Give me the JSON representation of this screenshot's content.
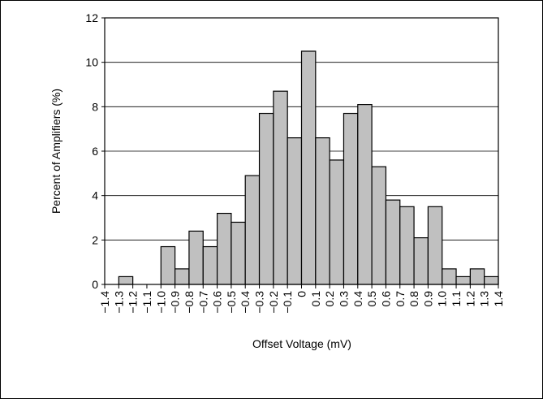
{
  "chart_data": {
    "type": "histogram",
    "x_label": "Offset Voltage (mV)",
    "y_label": "Percent of Amplifiers (%)",
    "bins": [
      -1.4,
      -1.3,
      -1.2,
      -1.1,
      -1.0,
      -0.9,
      -0.8,
      -0.7,
      -0.6,
      -0.5,
      -0.4,
      -0.3,
      -0.2,
      -0.1,
      0,
      0.1,
      0.2,
      0.3,
      0.4,
      0.5,
      0.6,
      0.7,
      0.8,
      0.9,
      1.0,
      1.1,
      1.2,
      1.3,
      1.4
    ],
    "counts": [
      0,
      0.35,
      0,
      0,
      1.7,
      0.7,
      2.4,
      1.7,
      3.2,
      2.8,
      4.9,
      7.7,
      8.7,
      6.6,
      10.5,
      6.6,
      5.6,
      7.7,
      8.1,
      5.3,
      3.8,
      3.5,
      2.1,
      3.5,
      0.7,
      0.35,
      0.7,
      0.35
    ],
    "color": "#c0c0c0",
    "xlim": [
      -1.4,
      1.4
    ],
    "ylim": [
      0,
      12
    ],
    "yticks": [
      0,
      2,
      4,
      6,
      8,
      10,
      12
    ],
    "xticks": [
      {
        "value": -1.4,
        "label": "−1.4"
      },
      {
        "value": -1.3,
        "label": "−1.3"
      },
      {
        "value": -1.2,
        "label": "−1.2"
      },
      {
        "value": -1.1,
        "label": "−1.1"
      },
      {
        "value": -1.0,
        "label": "−1.0"
      },
      {
        "value": -0.9,
        "label": "−0.9"
      },
      {
        "value": -0.8,
        "label": "−0.8"
      },
      {
        "value": -0.7,
        "label": "−0.7"
      },
      {
        "value": -0.6,
        "label": "−0.6"
      },
      {
        "value": -0.5,
        "label": "−0.5"
      },
      {
        "value": -0.4,
        "label": "−0.4"
      },
      {
        "value": -0.3,
        "label": "−0.3"
      },
      {
        "value": -0.2,
        "label": "−0.2"
      },
      {
        "value": -0.1,
        "label": "−0.1"
      },
      0,
      0.1,
      0.2,
      0.3,
      0.4,
      0.5,
      0.6,
      0.7,
      0.8,
      0.9,
      {
        "value": 1.0,
        "label": "1.0"
      },
      1.1,
      1.2,
      1.3,
      1.4
    ],
    "grid": true
  }
}
